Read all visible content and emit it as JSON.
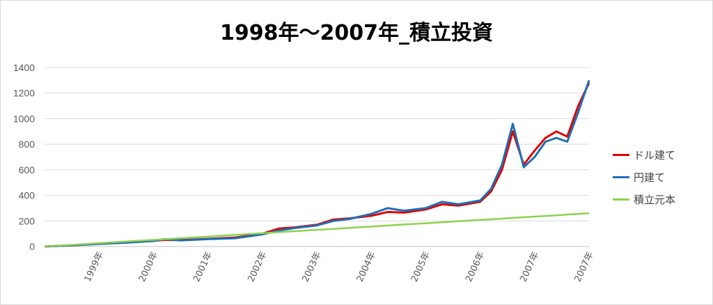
{
  "chart_data": {
    "type": "line",
    "title": "1998年～2007年_積立投資",
    "xlabel": "",
    "ylabel": "",
    "ylim": [
      0,
      1400
    ],
    "yticks": [
      0,
      200,
      400,
      600,
      800,
      1000,
      1200,
      1400
    ],
    "x_tick_labels": [
      "1999年",
      "2000年",
      "2001年",
      "2002年",
      "2003年",
      "2004年",
      "2005年",
      "2006年",
      "2007年",
      "2007年"
    ],
    "grid": true,
    "legend_position": "right",
    "x": [
      1998.0,
      1998.5,
      1999.0,
      1999.5,
      2000.0,
      2000.2,
      2000.5,
      2001.0,
      2001.5,
      2002.0,
      2002.3,
      2002.6,
      2003.0,
      2003.3,
      2003.6,
      2004.0,
      2004.3,
      2004.6,
      2005.0,
      2005.3,
      2005.6,
      2006.0,
      2006.2,
      2006.4,
      2006.6,
      2006.8,
      2007.0,
      2007.2,
      2007.4,
      2007.6,
      2007.8,
      2008.0
    ],
    "series": [
      {
        "name": "ドル建て",
        "color": "#e00000",
        "values": [
          0,
          10,
          22,
          32,
          45,
          52,
          50,
          60,
          70,
          100,
          140,
          150,
          170,
          210,
          220,
          240,
          270,
          265,
          290,
          330,
          320,
          350,
          430,
          600,
          900,
          640,
          750,
          850,
          900,
          860,
          1100,
          1280
        ]
      },
      {
        "name": "円建て",
        "color": "#1f6fb4",
        "values": [
          0,
          9,
          20,
          30,
          43,
          58,
          48,
          58,
          65,
          95,
          125,
          145,
          165,
          200,
          215,
          255,
          300,
          280,
          300,
          350,
          330,
          360,
          450,
          640,
          960,
          620,
          700,
          820,
          850,
          820,
          1050,
          1300
        ]
      },
      {
        "name": "積立元本",
        "color": "#8fd14f",
        "values": [
          0,
          13,
          26,
          39,
          52,
          57,
          65,
          78,
          91,
          104,
          112,
          120,
          130,
          138,
          146,
          156,
          164,
          172,
          182,
          190,
          198,
          208,
          213,
          218,
          224,
          229,
          234,
          239,
          244,
          250,
          255,
          260
        ]
      }
    ]
  }
}
